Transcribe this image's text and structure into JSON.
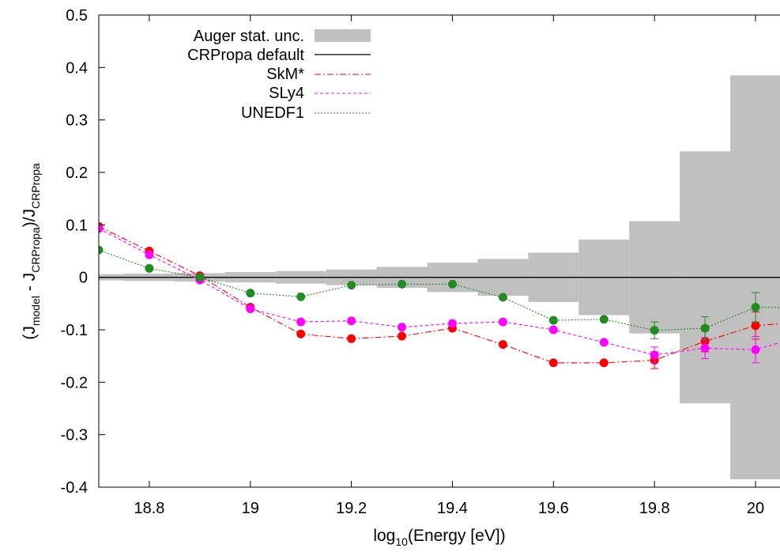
{
  "chart_data": {
    "type": "line",
    "xlabel": {
      "main": "log",
      "sub": "10",
      "rest": "(Energy [eV])"
    },
    "ylabel": {
      "p1": "(J",
      "s1": "model",
      "p2": " - J",
      "s2": "CRPropa",
      "p3": ")/J",
      "s3": "CRPropa"
    },
    "xlim": [
      18.7,
      20.05
    ],
    "ylim": [
      -0.4,
      0.5
    ],
    "x_ticks": [
      18.8,
      19,
      19.2,
      19.4,
      19.6,
      19.8,
      20
    ],
    "x_tick_labels": [
      "18.8",
      "19",
      "19.2",
      "19.4",
      "19.6",
      "19.8",
      "20"
    ],
    "y_ticks": [
      -0.4,
      -0.3,
      -0.2,
      -0.1,
      0,
      0.1,
      0.2,
      0.3,
      0.4,
      0.5
    ],
    "y_tick_labels": [
      "-0.4",
      "-0.3",
      "-0.2",
      "-0.1",
      "0",
      "0.1",
      "0.2",
      "0.3",
      "0.4",
      "0.5"
    ],
    "grid": false,
    "legend_position": "top-left",
    "band": {
      "name": "Auger stat. unc.",
      "color": "#c0c0c0",
      "bins": [
        {
          "x0": 18.65,
          "x1": 18.75,
          "h": 0.006
        },
        {
          "x0": 18.75,
          "x1": 18.85,
          "h": 0.007
        },
        {
          "x0": 18.85,
          "x1": 18.95,
          "h": 0.008
        },
        {
          "x0": 18.95,
          "x1": 19.05,
          "h": 0.01
        },
        {
          "x0": 19.05,
          "x1": 19.15,
          "h": 0.012
        },
        {
          "x0": 19.15,
          "x1": 19.25,
          "h": 0.015
        },
        {
          "x0": 19.25,
          "x1": 19.35,
          "h": 0.02
        },
        {
          "x0": 19.35,
          "x1": 19.45,
          "h": 0.028
        },
        {
          "x0": 19.45,
          "x1": 19.55,
          "h": 0.035
        },
        {
          "x0": 19.55,
          "x1": 19.65,
          "h": 0.047
        },
        {
          "x0": 19.65,
          "x1": 19.75,
          "h": 0.072
        },
        {
          "x0": 19.75,
          "x1": 19.85,
          "h": 0.107
        },
        {
          "x0": 19.85,
          "x1": 19.95,
          "h": 0.24
        },
        {
          "x0": 19.95,
          "x1": 20.05,
          "h": 0.385
        }
      ]
    },
    "baseline": {
      "name": "CRPropa default",
      "value": 0,
      "color": "#000000"
    },
    "series": [
      {
        "name": "SkM*",
        "color": "#ff0000",
        "dash": "8,3,2,3",
        "x": [
          18.7,
          18.8,
          18.9,
          19.0,
          19.1,
          19.2,
          19.3,
          19.4,
          19.5,
          19.6,
          19.7,
          19.8,
          19.9,
          20.0,
          20.1
        ],
        "y": [
          0.097,
          0.05,
          0.003,
          -0.057,
          -0.108,
          -0.117,
          -0.112,
          -0.097,
          -0.128,
          -0.163,
          -0.163,
          -0.158,
          -0.122,
          -0.092,
          -0.085
        ],
        "err": [
          0,
          0,
          0,
          0,
          0,
          0,
          0,
          0,
          0,
          0,
          0,
          0.016,
          0.02,
          0.026,
          0
        ]
      },
      {
        "name": "SLy4",
        "color": "#ff00ff",
        "dash": "4,3",
        "x": [
          18.7,
          18.8,
          18.9,
          19.0,
          19.1,
          19.2,
          19.3,
          19.4,
          19.5,
          19.6,
          19.7,
          19.8,
          19.9,
          20.0,
          20.1
        ],
        "y": [
          0.093,
          0.043,
          -0.005,
          -0.06,
          -0.085,
          -0.083,
          -0.095,
          -0.088,
          -0.085,
          -0.1,
          -0.124,
          -0.148,
          -0.135,
          -0.138,
          -0.11
        ],
        "err": [
          0,
          0,
          0,
          0,
          0,
          0,
          0,
          0,
          0,
          0,
          0,
          0.015,
          0.02,
          0.025,
          0
        ]
      },
      {
        "name": "UNEDF1",
        "color": "#228b22",
        "dash": "2,2",
        "x": [
          18.7,
          18.8,
          18.9,
          19.0,
          19.1,
          19.2,
          19.3,
          19.4,
          19.5,
          19.6,
          19.7,
          19.8,
          19.9,
          20.0,
          20.1
        ],
        "y": [
          0.052,
          0.017,
          0.0,
          -0.03,
          -0.037,
          -0.015,
          -0.013,
          -0.013,
          -0.038,
          -0.082,
          -0.08,
          -0.101,
          -0.097,
          -0.057,
          -0.058
        ],
        "err": [
          0,
          0,
          0,
          0,
          0,
          0,
          0,
          0,
          0,
          0,
          0,
          0.016,
          0.022,
          0.028,
          0
        ]
      }
    ]
  }
}
